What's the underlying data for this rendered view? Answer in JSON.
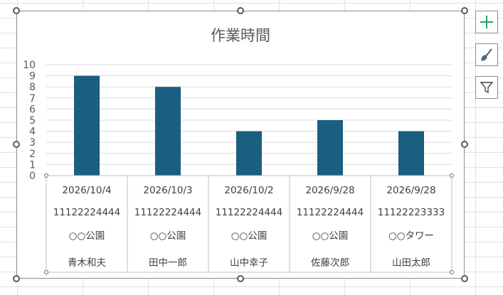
{
  "chart_data": {
    "type": "bar",
    "title": "作業時間",
    "xlabel": "",
    "ylabel": "",
    "ylim": [
      0,
      10
    ],
    "yticks": [
      0,
      1,
      2,
      3,
      4,
      5,
      6,
      7,
      8,
      9,
      10
    ],
    "grid": true,
    "legend": "none",
    "bar_color": "#1a5e80",
    "categories": [
      [
        "2026/10/4",
        "11122224444",
        "○○公園",
        "青木和夫"
      ],
      [
        "2026/10/3",
        "11122224444",
        "○○公園",
        "田中一郎"
      ],
      [
        "2026/10/2",
        "11122224444",
        "○○公園",
        "山中幸子"
      ],
      [
        "2026/9/28",
        "11122224444",
        "○○公園",
        "佐藤次郎"
      ],
      [
        "2026/9/28",
        "11122223333",
        "○○タワー",
        "山田太郎"
      ]
    ],
    "values": [
      9,
      8,
      4,
      5,
      4
    ]
  },
  "side_buttons": {
    "add_icon": "plus-icon",
    "style_icon": "brush-icon",
    "filter_icon": "funnel-icon",
    "add_color": "#21a366"
  }
}
